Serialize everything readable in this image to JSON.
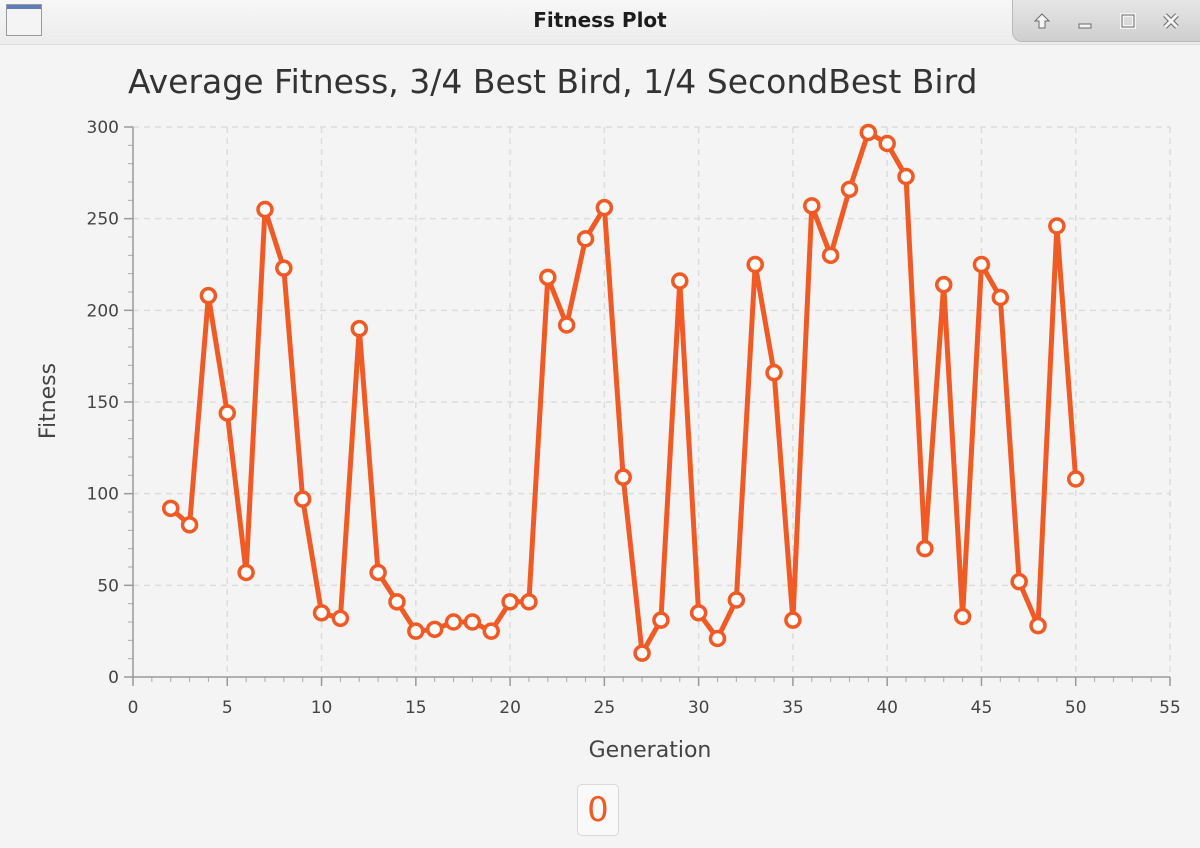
{
  "window": {
    "title": "Fitness Plot",
    "controls": [
      {
        "name": "maximize-up-button",
        "icon": "arrow-up-icon"
      },
      {
        "name": "minimize-button",
        "icon": "minimize-icon"
      },
      {
        "name": "restore-button",
        "icon": "restore-icon"
      },
      {
        "name": "close-button",
        "icon": "close-icon"
      }
    ]
  },
  "counter": {
    "value": "0"
  },
  "chart_data": {
    "type": "line",
    "title": "Average Fitness, 3/4 Best Bird, 1/4 SecondBest Bird",
    "xlabel": "Generation",
    "ylabel": "Fitness",
    "xlim": [
      0,
      55
    ],
    "ylim": [
      0,
      300
    ],
    "xticks": [
      "0",
      "5",
      "10",
      "15",
      "20",
      "25",
      "30",
      "35",
      "40",
      "45",
      "50",
      "55"
    ],
    "yticks": [
      "0",
      "50",
      "100",
      "150",
      "200",
      "250",
      "300"
    ],
    "grid": true,
    "legend": "none",
    "color": "#f05a24",
    "series": [
      {
        "x": [
          2,
          3,
          4,
          5,
          6,
          7,
          8,
          9,
          10,
          11,
          12,
          13,
          14,
          15,
          16,
          17,
          18,
          19,
          20,
          21,
          22,
          23,
          24,
          25,
          26,
          27,
          28,
          29,
          30,
          31,
          32,
          33,
          34,
          35,
          36,
          37,
          38,
          39,
          40,
          41,
          42,
          43,
          44,
          45,
          46,
          47,
          48,
          49,
          50
        ],
        "y": [
          92,
          83,
          208,
          144,
          57,
          255,
          223,
          97,
          35,
          32,
          190,
          57,
          41,
          25,
          26,
          30,
          30,
          25,
          41,
          41,
          218,
          192,
          239,
          256,
          109,
          13,
          31,
          216,
          35,
          21,
          42,
          225,
          166,
          31,
          257,
          230,
          266,
          297,
          291,
          273,
          70,
          214,
          33,
          225,
          207,
          52,
          28,
          246,
          108
        ]
      }
    ]
  }
}
